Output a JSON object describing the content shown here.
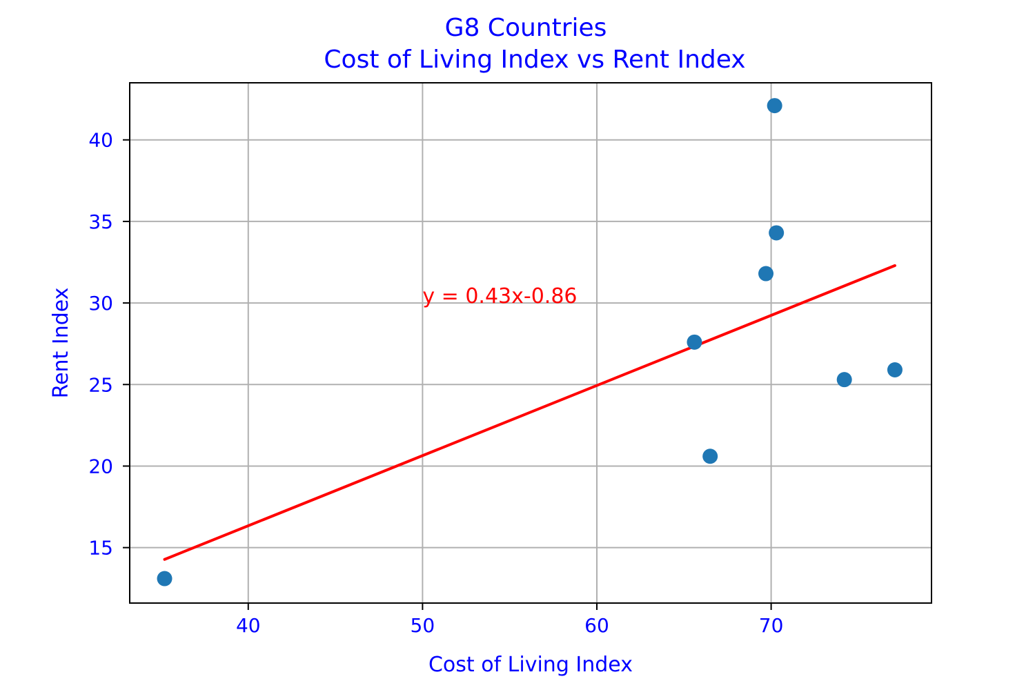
{
  "chart_data": {
    "type": "scatter",
    "title": "G8 Countries",
    "subtitle": "Cost of Living Index vs Rent Index",
    "xlabel": "Cost of Living Index",
    "ylabel": "Rent Index",
    "xlim": [
      33.2,
      79.2
    ],
    "ylim": [
      11.6,
      43.5
    ],
    "x_ticks": [
      40,
      50,
      60,
      70
    ],
    "y_ticks": [
      15,
      20,
      25,
      30,
      35,
      40
    ],
    "x_tick_labels": [
      "40",
      "50",
      "60",
      "70"
    ],
    "y_tick_labels": [
      "15",
      "20",
      "25",
      "30",
      "35",
      "40"
    ],
    "grid": true,
    "points": [
      {
        "x": 35.2,
        "y": 13.1
      },
      {
        "x": 65.6,
        "y": 27.6
      },
      {
        "x": 66.5,
        "y": 20.6
      },
      {
        "x": 69.7,
        "y": 31.8
      },
      {
        "x": 70.2,
        "y": 42.1
      },
      {
        "x": 70.3,
        "y": 34.3
      },
      {
        "x": 74.2,
        "y": 25.3
      },
      {
        "x": 77.1,
        "y": 25.9
      }
    ],
    "regression": {
      "slope": 0.43,
      "intercept": -0.86,
      "x_range": [
        35.2,
        77.1
      ],
      "label": "y = 0.43x-0.86",
      "label_position": {
        "x": 50,
        "y": 30
      }
    },
    "colors": {
      "points": "#1f77b4",
      "line": "#ff0000",
      "text": "#0000ff",
      "annotation": "#ff0000",
      "grid": "#b0b0b0"
    }
  }
}
